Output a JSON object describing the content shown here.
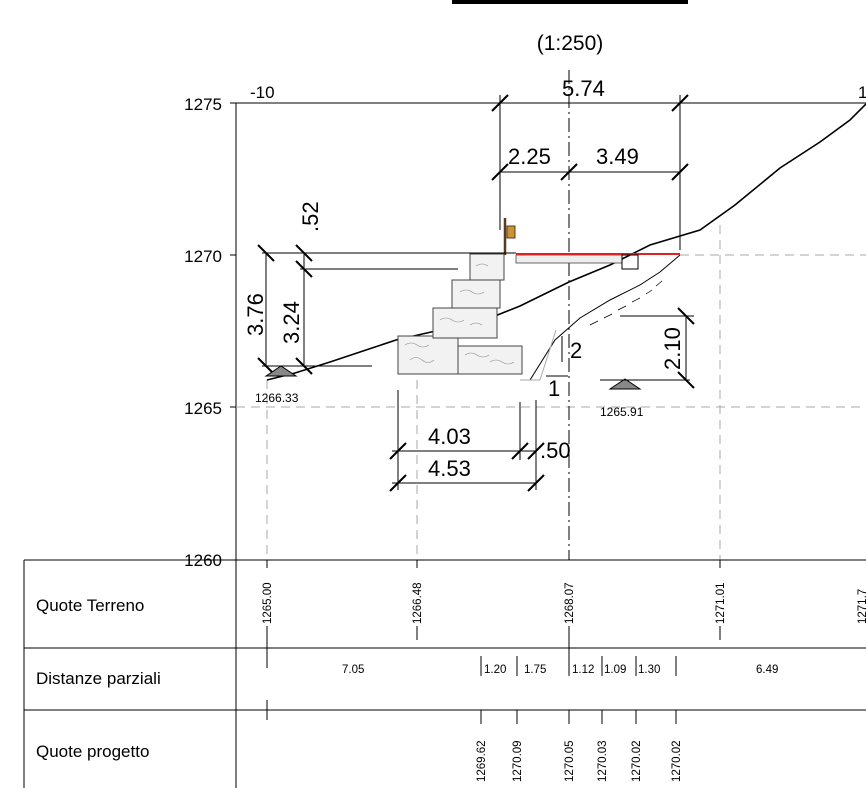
{
  "scale": "(1:250)",
  "axis": {
    "left_label": "-10",
    "right_label": "1",
    "elevations": [
      "1275",
      "1270",
      "1265",
      "1260"
    ]
  },
  "dimensions": {
    "top_total": "5.74",
    "top_left": "2.25",
    "top_right": "3.49",
    "wall_left_outer": "3.76",
    "wall_left_inner": "3.24",
    "wall_top": ".52",
    "right_height": "2.10",
    "slope_v": "2",
    "slope_h": "1",
    "base_inner": "4.03",
    "base_outer": "4.53",
    "base_offset": ".50"
  },
  "spot_elevations": {
    "left": "1266.33",
    "right": "1265.91"
  },
  "table": {
    "rows": [
      {
        "label": "Quote Terreno"
      },
      {
        "label": "Distanze parziali"
      },
      {
        "label": "Quote progetto"
      }
    ],
    "quote_terreno": [
      "1265.00",
      "1266.48",
      "1268.07",
      "1271.01",
      "1271.7"
    ],
    "distanze_parziali": [
      "7.05",
      "1.20",
      "1.75",
      "1.12",
      "1.09",
      "1.30",
      "6.49"
    ],
    "quote_progetto": [
      "1269.62",
      "1270.09",
      "1270.05",
      "1270.03",
      "1270.02",
      "1270.02"
    ]
  }
}
